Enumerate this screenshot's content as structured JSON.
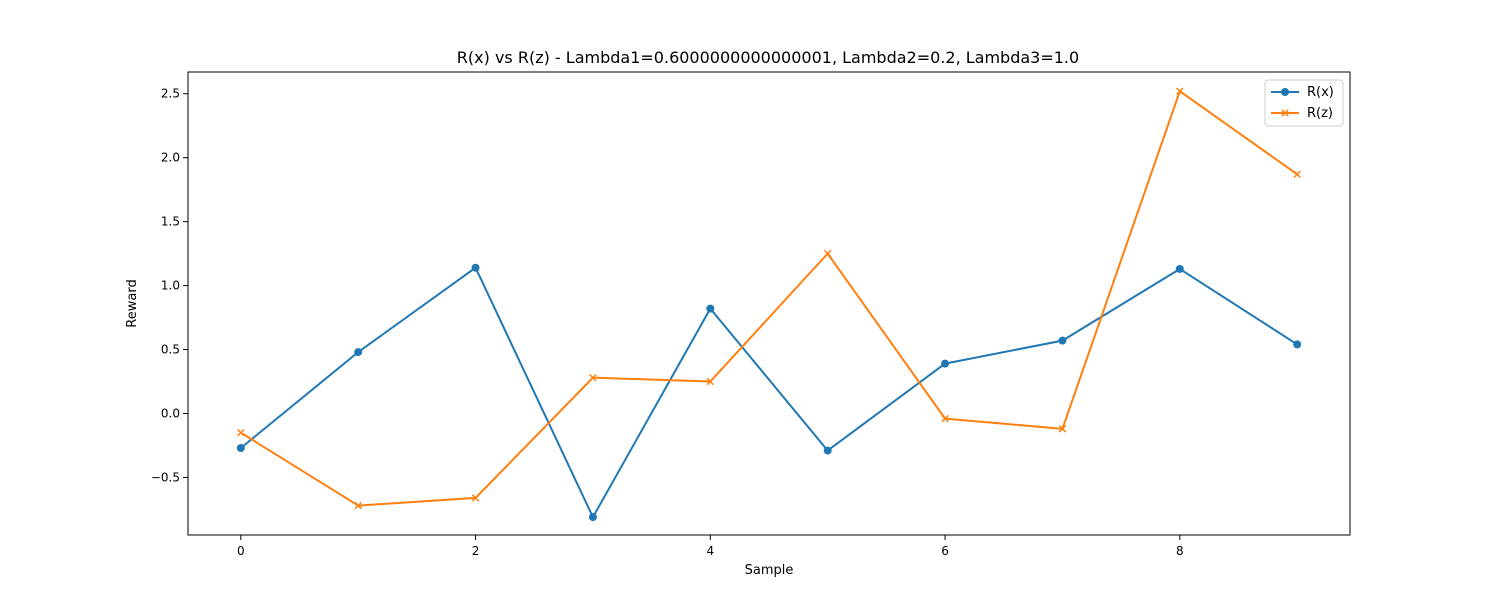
{
  "chart_data": {
    "type": "line",
    "title": "R(x) vs R(z) - Lambda1=0.6000000000000001, Lambda2=0.2, Lambda3=1.0",
    "xlabel": "Sample",
    "ylabel": "Reward",
    "x": [
      0,
      1,
      2,
      3,
      4,
      5,
      6,
      7,
      8,
      9
    ],
    "xlim": [
      -0.45,
      9.45
    ],
    "ylim": [
      -0.95,
      2.67
    ],
    "xticks": [
      0,
      2,
      4,
      6,
      8
    ],
    "xtick_labels": [
      "0",
      "2",
      "4",
      "6",
      "8"
    ],
    "yticks": [
      -0.5,
      0.0,
      0.5,
      1.0,
      1.5,
      2.0,
      2.5
    ],
    "ytick_labels": [
      "−0.5",
      "0.0",
      "0.5",
      "1.0",
      "1.5",
      "2.0",
      "2.5"
    ],
    "grid": false,
    "legend_position": "top-right",
    "series": [
      {
        "name": "R(x)",
        "color": "#1f77b4",
        "marker": "circle",
        "values": [
          -0.27,
          0.48,
          1.14,
          -0.81,
          0.82,
          -0.29,
          0.39,
          0.57,
          1.13,
          0.54
        ]
      },
      {
        "name": "R(z)",
        "color": "#ff7f0e",
        "marker": "x",
        "values": [
          -0.15,
          -0.72,
          -0.66,
          0.28,
          0.25,
          1.25,
          -0.04,
          -0.12,
          2.52,
          1.87
        ]
      }
    ]
  }
}
